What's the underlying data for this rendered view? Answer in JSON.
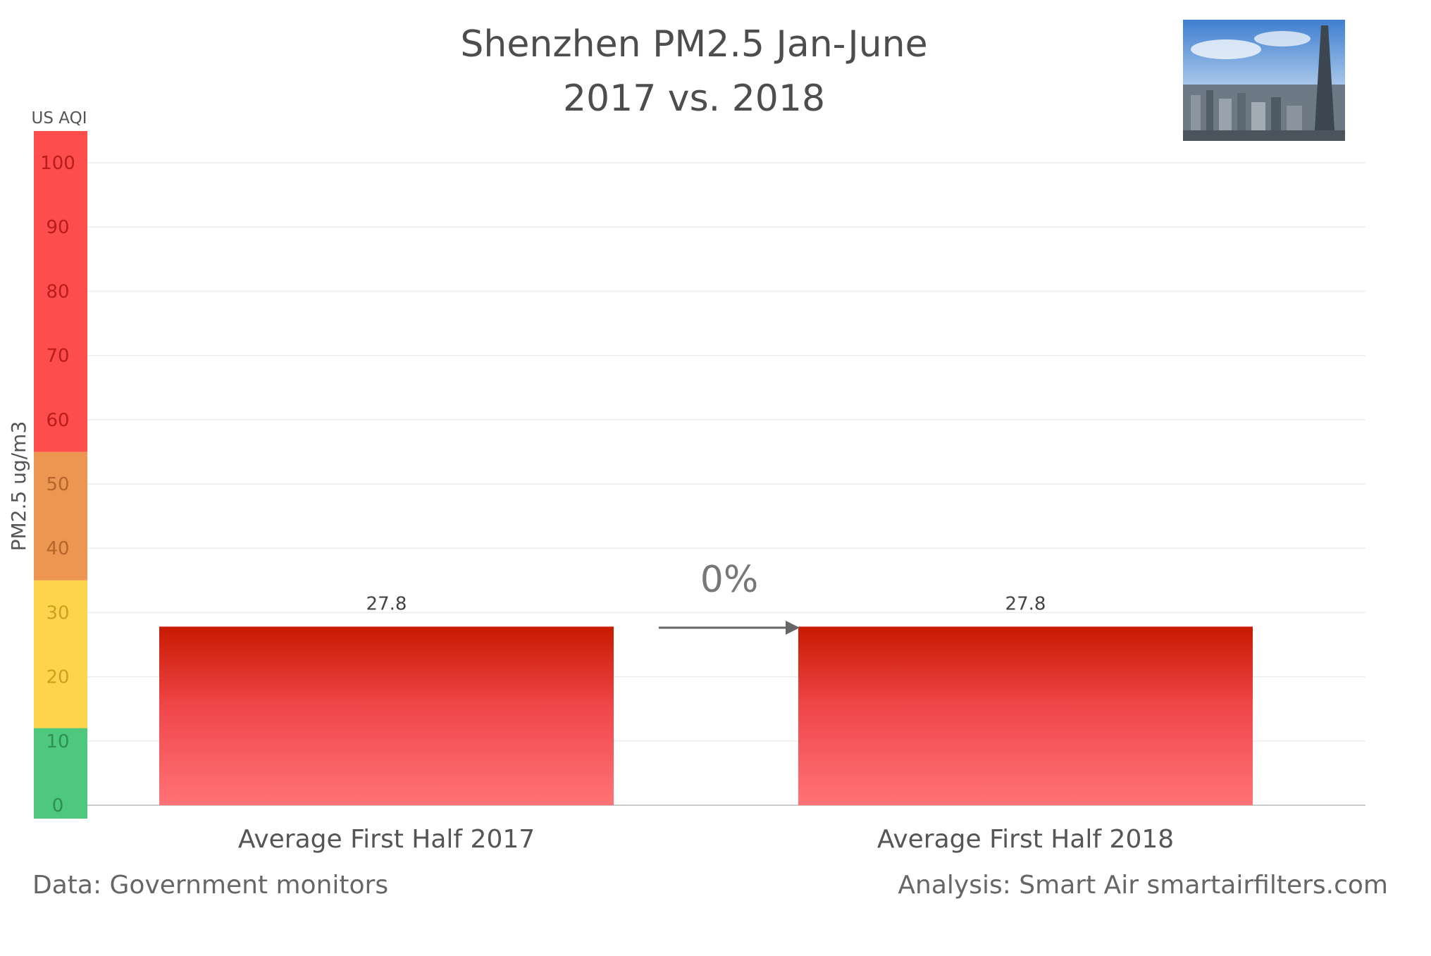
{
  "chart_data": {
    "type": "bar",
    "title_line1": "Shenzhen PM2.5 Jan-June",
    "title_line2": "2017 vs. 2018",
    "categories": [
      "Average First Half 2017",
      "Average First Half 2018"
    ],
    "values": [
      27.8,
      27.8
    ],
    "data_labels": [
      "27.8",
      "27.8"
    ],
    "ylabel": "PM2.5 ug/m3",
    "ylim": [
      0,
      100
    ],
    "yticks": [
      "0",
      "10",
      "20",
      "30",
      "40",
      "50",
      "60",
      "70",
      "80",
      "90",
      "100"
    ],
    "aqi_label": "US AQI",
    "aqi_bands": [
      {
        "from": 0,
        "to": 12,
        "color": "#4dc87e"
      },
      {
        "from": 12,
        "to": 35,
        "color": "#fdd54d"
      },
      {
        "from": 35,
        "to": 55,
        "color": "#ec9651"
      },
      {
        "from": 55,
        "to": 105,
        "color": "#fd4d4d"
      }
    ],
    "change_label": "0%",
    "bar_color_top": "#c81a00",
    "bar_color_bottom": "#ff7377",
    "grid": true
  },
  "footer": {
    "left": "Data: Government monitors",
    "right": "Analysis: Smart Air smartairfilters.com"
  },
  "photo": {
    "icon": "shenzhen-skyline-photo"
  }
}
